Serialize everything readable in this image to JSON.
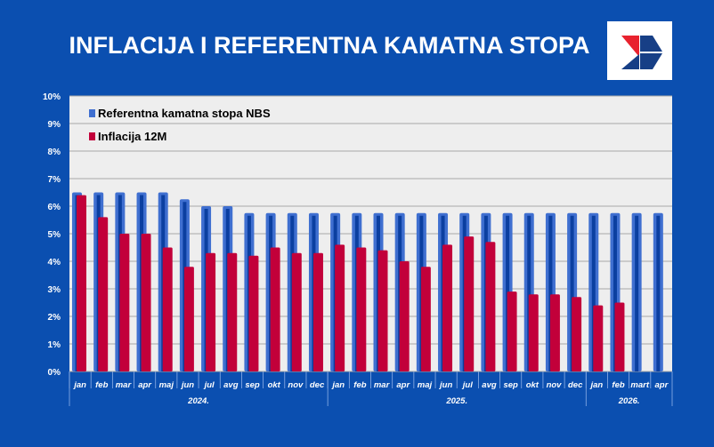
{
  "title": "INFLACIJA I REFERENTNA KAMATNA STOPA",
  "colors": {
    "background": "#0b4fb0",
    "rate": "#1a4fb8",
    "inflation": "#c2003a",
    "plot": "#eeeeee"
  },
  "chart_data": {
    "type": "bar",
    "title": "INFLACIJA I REFERENTNA KAMATNA STOPA",
    "ylim": [
      0,
      10
    ],
    "yticks": [
      "0%",
      "1%",
      "2%",
      "3%",
      "4%",
      "5%",
      "6%",
      "7%",
      "8%",
      "9%",
      "10%"
    ],
    "grid": true,
    "legend_position": "top-left",
    "categories": [
      "jan",
      "feb",
      "mar",
      "apr",
      "maj",
      "jun",
      "jul",
      "avg",
      "sep",
      "okt",
      "nov",
      "dec",
      "jan",
      "feb",
      "mar",
      "apr",
      "maj",
      "jun",
      "jul",
      "avg",
      "sep",
      "okt",
      "nov",
      "dec",
      "jan",
      "feb",
      "mart",
      "apr"
    ],
    "groups": [
      {
        "label": "2024.",
        "count": 12
      },
      {
        "label": "2025.",
        "count": 12
      },
      {
        "label": "2026.",
        "count": 4
      }
    ],
    "series": [
      {
        "name": "Referentna kamatna stopa NBS",
        "values": [
          6.5,
          6.5,
          6.5,
          6.5,
          6.5,
          6.25,
          6.0,
          6.0,
          5.75,
          5.75,
          5.75,
          5.75,
          5.75,
          5.75,
          5.75,
          5.75,
          5.75,
          5.75,
          5.75,
          5.75,
          5.75,
          5.75,
          5.75,
          5.75,
          5.75,
          5.75,
          5.75,
          5.75
        ]
      },
      {
        "name": "Inflacija 12M",
        "values": [
          6.4,
          5.6,
          5.0,
          5.0,
          4.5,
          3.8,
          4.3,
          4.3,
          4.2,
          4.5,
          4.3,
          4.3,
          4.6,
          4.5,
          4.4,
          4.0,
          3.8,
          4.6,
          4.9,
          4.7,
          2.9,
          2.8,
          2.8,
          2.7,
          2.4,
          2.5,
          null,
          null
        ]
      }
    ]
  }
}
